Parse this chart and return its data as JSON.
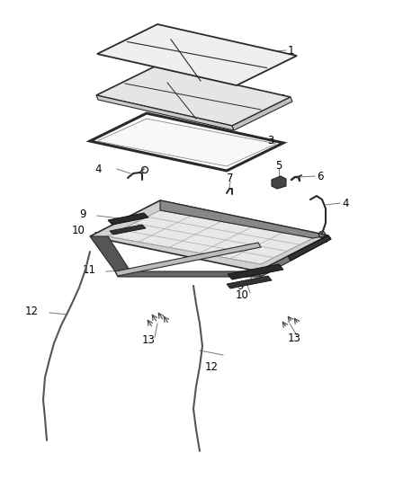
{
  "bg_color": "#ffffff",
  "line_color": "#2a2a2a",
  "label_color": "#000000",
  "label_fontsize": 8.5,
  "callout_color": "#555555",
  "part_fill": "#f2f2f2",
  "dark_part": "#333333",
  "frame_color": "#bbbbbb"
}
